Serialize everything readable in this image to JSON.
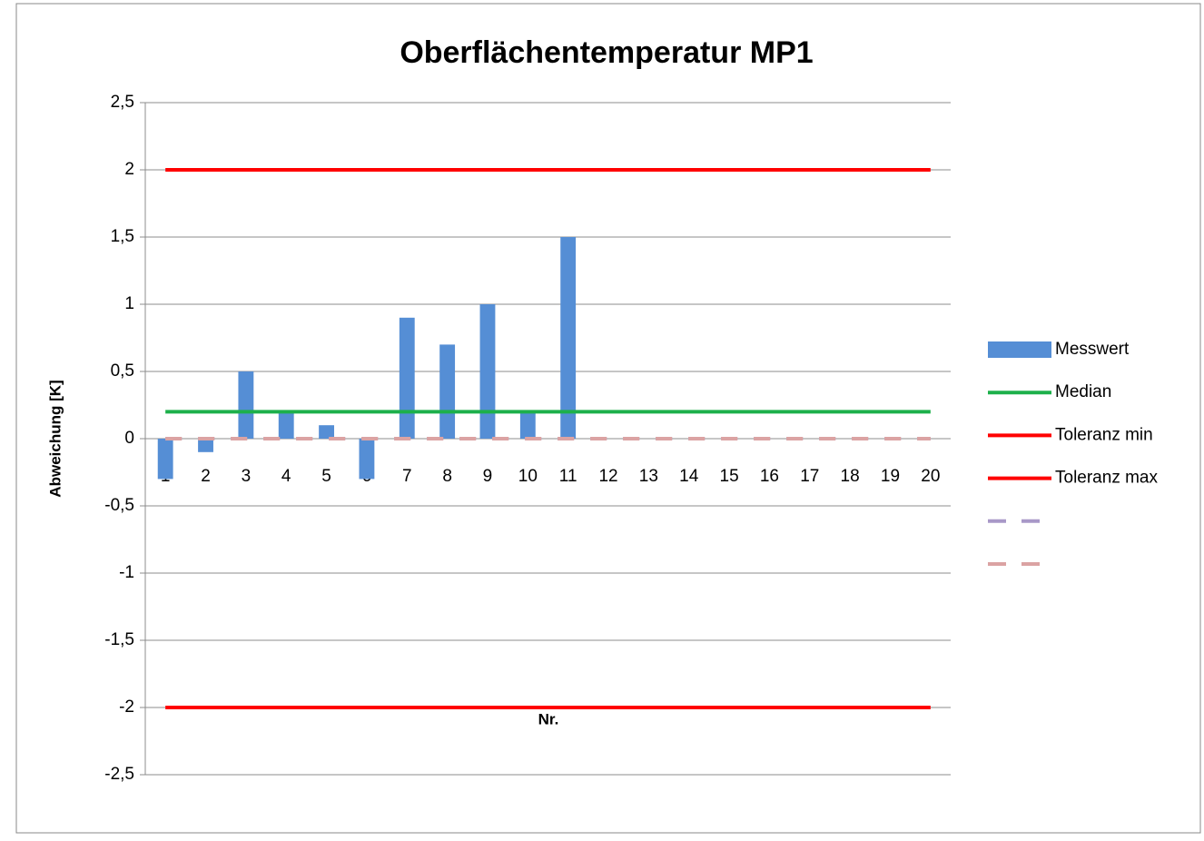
{
  "chart_data": {
    "type": "bar",
    "title": "Oberflächentemperatur MP1",
    "y_axis_label": "Abweichung [K]",
    "x_axis_label": "Nr.",
    "categories": [
      "1",
      "2",
      "3",
      "4",
      "5",
      "6",
      "7",
      "8",
      "9",
      "10",
      "11",
      "12",
      "13",
      "14",
      "15",
      "16",
      "17",
      "18",
      "19",
      "20"
    ],
    "series": [
      {
        "name": "Messwert",
        "type": "bar",
        "color": "#558ed5",
        "values": [
          -0.3,
          -0.1,
          0.5,
          0.2,
          0.1,
          -0.3,
          0.9,
          0.7,
          1.0,
          0.2,
          1.5,
          null,
          null,
          null,
          null,
          null,
          null,
          null,
          null,
          null
        ]
      },
      {
        "name": "Median",
        "type": "line",
        "color": "#1db04b",
        "values": [
          0.2,
          0.2,
          0.2,
          0.2,
          0.2,
          0.2,
          0.2,
          0.2,
          0.2,
          0.2,
          0.2,
          0.2,
          0.2,
          0.2,
          0.2,
          0.2,
          0.2,
          0.2,
          0.2,
          0.2
        ]
      },
      {
        "name": "Toleranz min",
        "type": "line",
        "color": "#ff0000",
        "values": [
          -2,
          -2,
          -2,
          -2,
          -2,
          -2,
          -2,
          -2,
          -2,
          -2,
          -2,
          -2,
          -2,
          -2,
          -2,
          -2,
          -2,
          -2,
          -2,
          -2
        ]
      },
      {
        "name": "Toleranz max",
        "type": "line",
        "color": "#ff0000",
        "values": [
          2,
          2,
          2,
          2,
          2,
          2,
          2,
          2,
          2,
          2,
          2,
          2,
          2,
          2,
          2,
          2,
          2,
          2,
          2,
          2
        ]
      },
      {
        "type": "line",
        "color": "#a898c8",
        "dashed": true,
        "values": [
          0,
          0,
          0,
          0,
          0,
          0,
          0,
          0,
          0,
          0,
          0,
          0,
          0,
          0,
          0,
          0,
          0,
          0,
          0,
          0
        ]
      },
      {
        "type": "line",
        "color": "#dba3a3",
        "dashed": true,
        "values": [
          0,
          0,
          0,
          0,
          0,
          0,
          0,
          0,
          0,
          0,
          0,
          0,
          0,
          0,
          0,
          0,
          0,
          0,
          0,
          0
        ]
      }
    ],
    "ylim": [
      -2.5,
      2.5
    ],
    "yticks": [
      {
        "value": -2.5,
        "label": "-2,5"
      },
      -2,
      {
        "value": -1.5,
        "label": "-1,5"
      },
      -1,
      {
        "value": -0.5,
        "label": "-0,5"
      },
      0,
      {
        "value": 0.5,
        "label": "0,5"
      },
      1,
      {
        "value": 1.5,
        "label": "1,5"
      },
      2,
      {
        "value": 2.5,
        "label": "2,5"
      }
    ],
    "grid": true,
    "legend": "right"
  }
}
